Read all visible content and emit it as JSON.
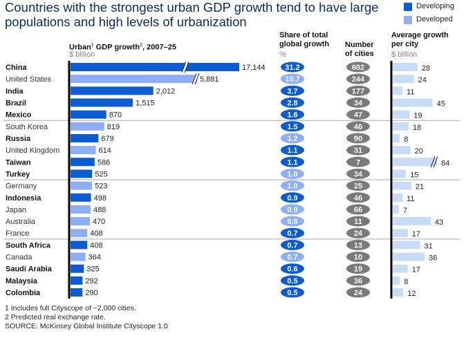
{
  "title": "Countries with the strongest urban GDP growth tend to have large populations and high levels of urbanization",
  "legend": [
    {
      "label": "Developing",
      "color": "#0d5ccf"
    },
    {
      "label": "Developed",
      "color": "#8eaef5"
    }
  ],
  "colors": {
    "developing": "#0d5ccf",
    "developed": "#8eaef5",
    "cities_pill": "#7a7a7a",
    "avg_bar": "#c7ddf7",
    "axis": "#000000",
    "separator": "#aaaaaa"
  },
  "headers": {
    "gdp": {
      "label_a": "Urban",
      "sup1": "1",
      "label_b": " GDP growth",
      "sup2": "2",
      "label_c": ", 2007–25",
      "unit": "$ billion"
    },
    "share": {
      "label1": "Share of total",
      "label2": "global growth",
      "unit": "%"
    },
    "cities": {
      "label1": "Number",
      "label2": "of cities"
    },
    "avg": {
      "label1": "Average growth",
      "label2": "per city",
      "unit": "$ billion"
    }
  },
  "chart_data": {
    "type": "bar",
    "orientation": "horizontal",
    "categories": [
      "China",
      "United States",
      "India",
      "Brazil",
      "Mexico",
      "South Korea",
      "Russia",
      "United Kingdom",
      "Taiwan",
      "Turkey",
      "Germany",
      "Indonesia",
      "Japan",
      "Australia",
      "France",
      "South Africa",
      "Canada",
      "Saudi Arabia",
      "Malaysia",
      "Colombia"
    ],
    "group": [
      "Developing",
      "Developed",
      "Developing",
      "Developing",
      "Developing",
      "Developed",
      "Developing",
      "Developed",
      "Developing",
      "Developing",
      "Developed",
      "Developing",
      "Developed",
      "Developed",
      "Developed",
      "Developing",
      "Developed",
      "Developing",
      "Developing",
      "Developing"
    ],
    "series": [
      {
        "name": "Urban GDP growth, 2007–25",
        "unit": "$ billion",
        "values": [
          17144,
          5881,
          2012,
          1515,
          870,
          819,
          679,
          614,
          586,
          525,
          523,
          498,
          488,
          470,
          408,
          408,
          364,
          325,
          292,
          290
        ],
        "labels": [
          "17,144",
          "5,881",
          "2,012",
          "1,515",
          "870",
          "819",
          "679",
          "614",
          "586",
          "525",
          "523",
          "498",
          "488",
          "470",
          "408",
          "408",
          "364",
          "325",
          "292",
          "290"
        ],
        "broken_axis": [
          "China",
          "United States"
        ]
      },
      {
        "name": "Share of total global growth",
        "unit": "%",
        "values": [
          31.2,
          10.7,
          3.7,
          2.8,
          1.6,
          1.5,
          1.2,
          1.1,
          1.1,
          1.0,
          1.0,
          0.9,
          0.9,
          0.9,
          0.7,
          0.7,
          0.7,
          0.6,
          0.5,
          0.5
        ],
        "labels": [
          "31.2",
          "10.7",
          "3.7",
          "2.8",
          "1.6",
          "1.5",
          "1.2",
          "1.1",
          "1.1",
          "1.0",
          "1.0",
          "0.9",
          "0.9",
          "0.9",
          "0.7",
          "0.7",
          "0.7",
          "0.6",
          "0.5",
          "0.5"
        ],
        "pill_shade": [
          "dark",
          "light",
          "dark",
          "dark",
          "dark",
          "dark",
          "light",
          "dark",
          "dark",
          "light",
          "light",
          "dark",
          "light",
          "light",
          "dark",
          "dark",
          "light",
          "dark",
          "dark",
          "dark"
        ]
      },
      {
        "name": "Number of cities",
        "values": [
          602,
          244,
          177,
          34,
          47,
          46,
          90,
          31,
          7,
          34,
          25,
          46,
          66,
          11,
          24,
          13,
          10,
          19,
          36,
          24
        ],
        "labels": [
          "602",
          "244",
          "177",
          "34",
          "47",
          "46",
          "90",
          "31",
          "7",
          "34",
          "25",
          "46",
          "66",
          "11",
          "24",
          "13",
          "10",
          "19",
          "36",
          "24"
        ]
      },
      {
        "name": "Average growth per city",
        "unit": "$ billion",
        "values": [
          28,
          24,
          11,
          45,
          19,
          18,
          8,
          20,
          84,
          15,
          21,
          11,
          7,
          43,
          17,
          31,
          36,
          17,
          8,
          12
        ],
        "labels": [
          "28",
          "24",
          "11",
          "45",
          "19",
          "18",
          "8",
          "20",
          "84",
          "15",
          "21",
          "11",
          "7",
          "43",
          "17",
          "31",
          "36",
          "17",
          "8",
          "12"
        ],
        "broken_axis": [
          "Taiwan"
        ]
      }
    ],
    "group_separators_after": [
      "Mexico",
      "Turkey",
      "France"
    ]
  },
  "footnotes": [
    "1  Includes full Cityscope of ~2,000 cities.",
    "2  Predicted real exchange rate.",
    "SOURCE: McKinsey Global Institute Cityscope 1.0"
  ]
}
